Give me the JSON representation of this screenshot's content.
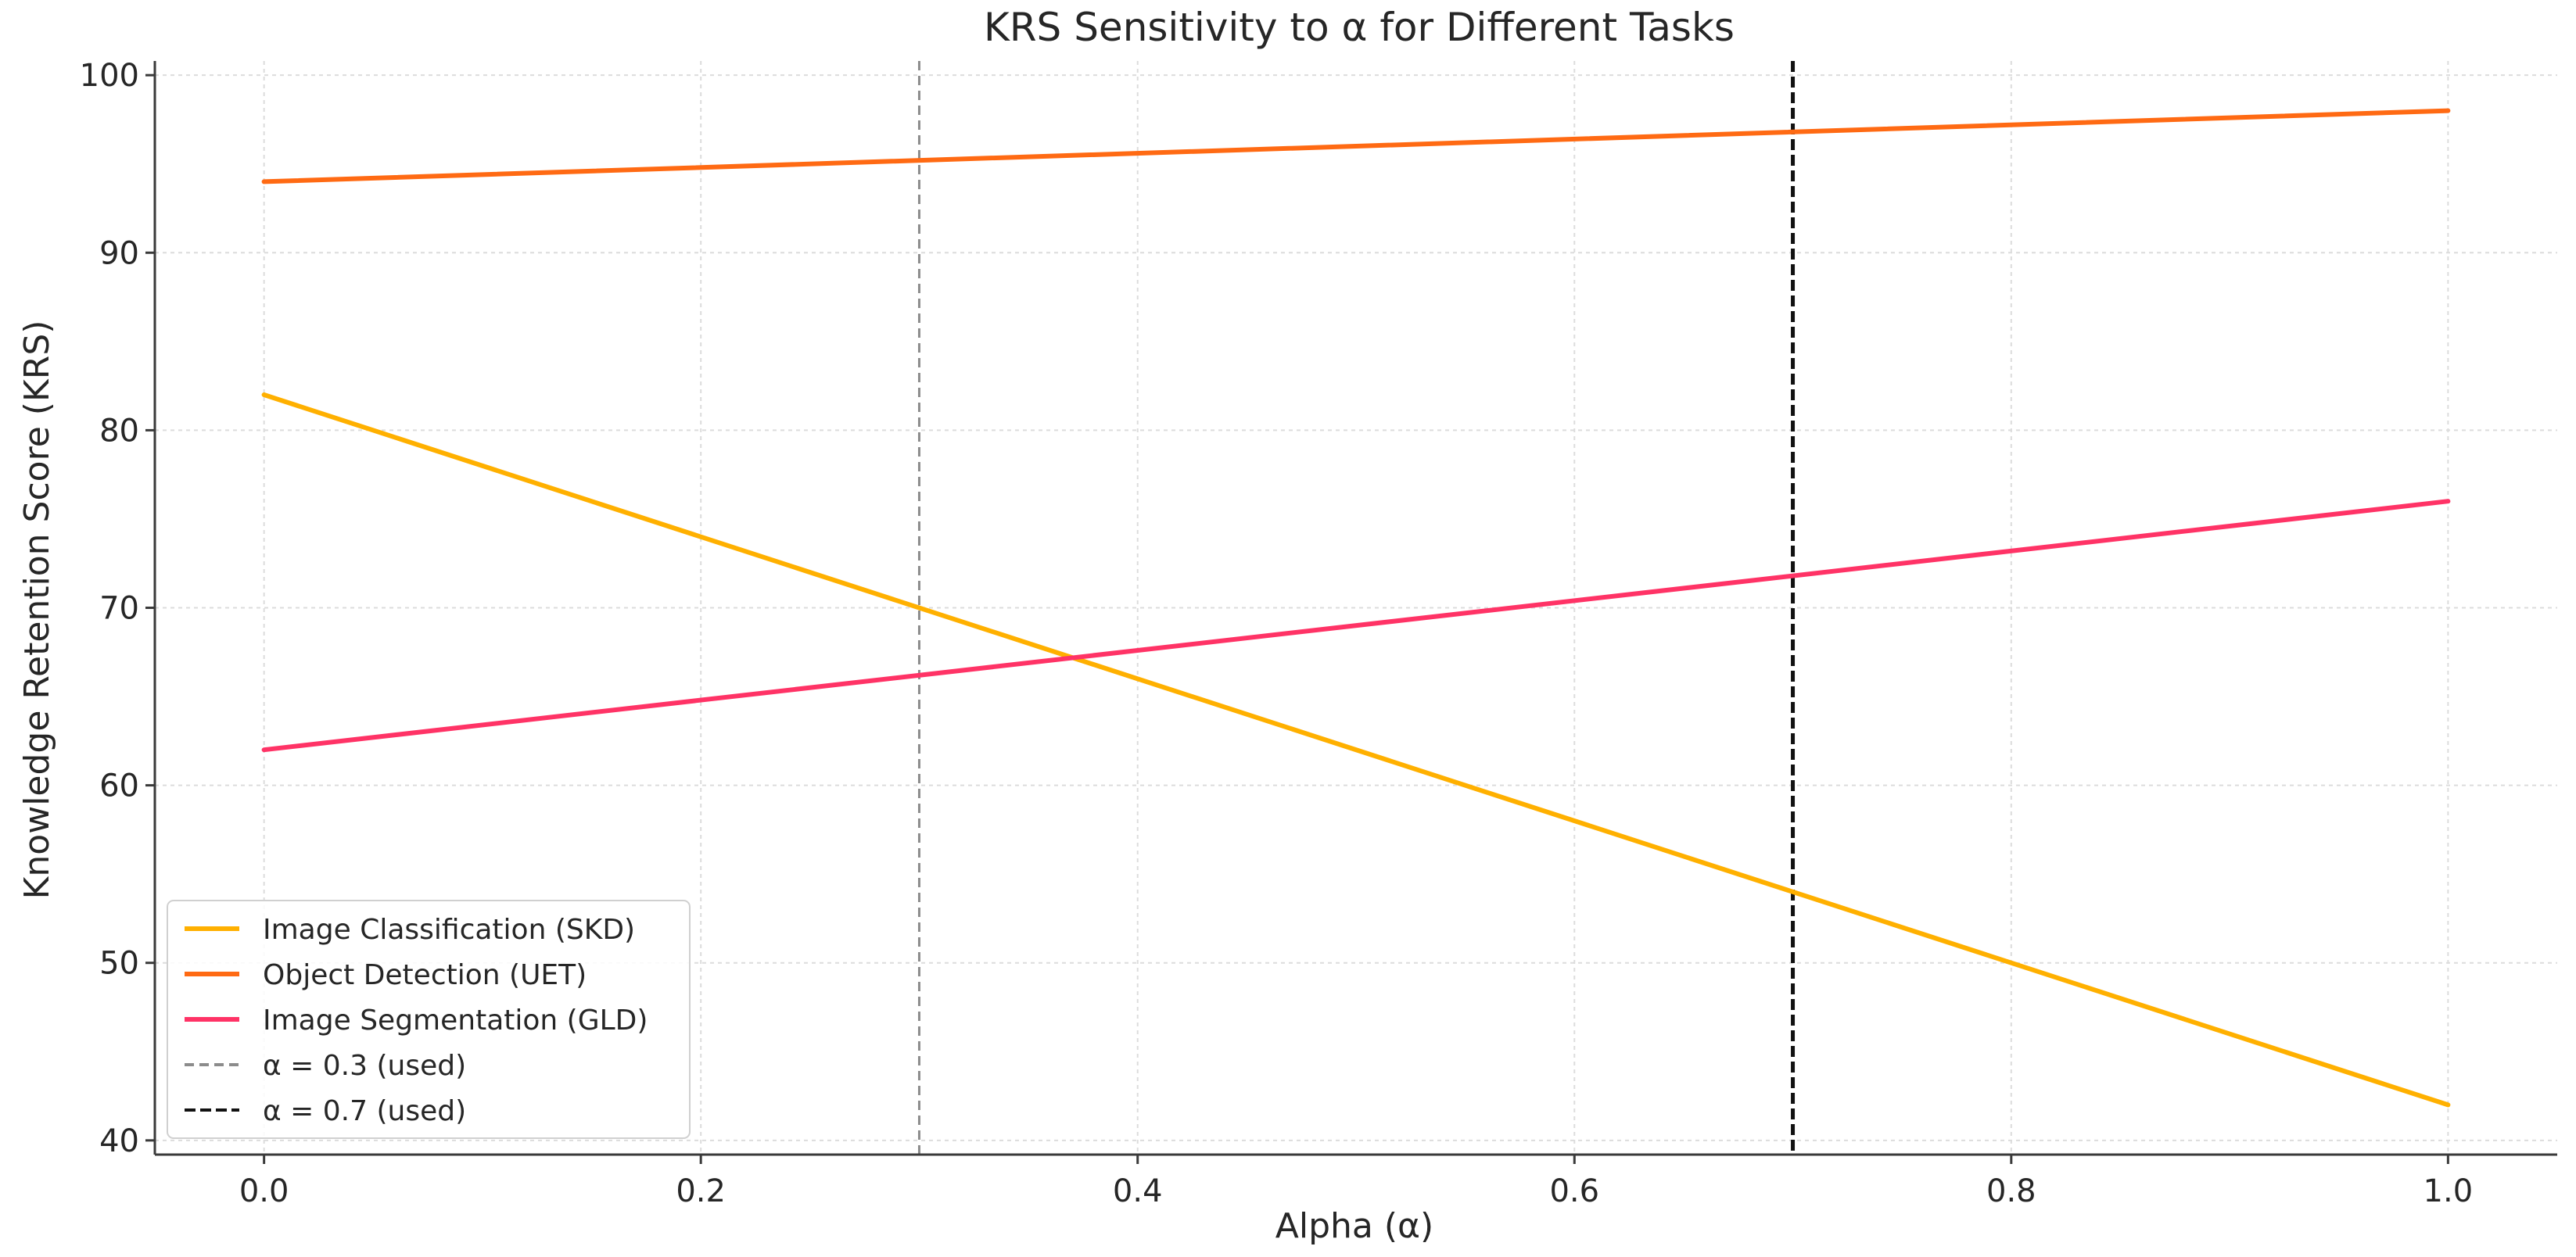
{
  "chart_data": {
    "type": "line",
    "title": "KRS Sensitivity to α for Different Tasks",
    "xlabel": "Alpha (α)",
    "ylabel": "Knowledge Retention Score (KRS)",
    "xlim": [
      -0.05,
      1.05
    ],
    "ylim": [
      39.2,
      100.8
    ],
    "x_ticks": [
      0.0,
      0.2,
      0.4,
      0.6,
      0.8,
      1.0
    ],
    "x_tick_labels": [
      "0.0",
      "0.2",
      "0.4",
      "0.6",
      "0.8",
      "1.0"
    ],
    "y_ticks": [
      40,
      50,
      60,
      70,
      80,
      90,
      100
    ],
    "y_tick_labels": [
      "40",
      "50",
      "60",
      "70",
      "80",
      "90",
      "100"
    ],
    "grid": true,
    "legend_position": "lower-left",
    "series": [
      {
        "name": "Image Classification (SKD)",
        "color": "#FFB000",
        "x": [
          0.0,
          1.0
        ],
        "values": [
          82,
          42
        ]
      },
      {
        "name": "Object Detection (UET)",
        "color": "#FF6A13",
        "x": [
          0.0,
          1.0
        ],
        "values": [
          94,
          98
        ]
      },
      {
        "name": "Image Segmentation (GLD)",
        "color": "#FF3366",
        "x": [
          0.0,
          1.0
        ],
        "values": [
          62,
          76
        ]
      }
    ],
    "reference_lines": [
      {
        "name": "α = 0.3 (used)",
        "x": 0.3,
        "color": "#8c8c8c",
        "style": "dashed"
      },
      {
        "name": "α = 0.7 (used)",
        "x": 0.7,
        "color": "#111111",
        "style": "dashed"
      }
    ]
  }
}
